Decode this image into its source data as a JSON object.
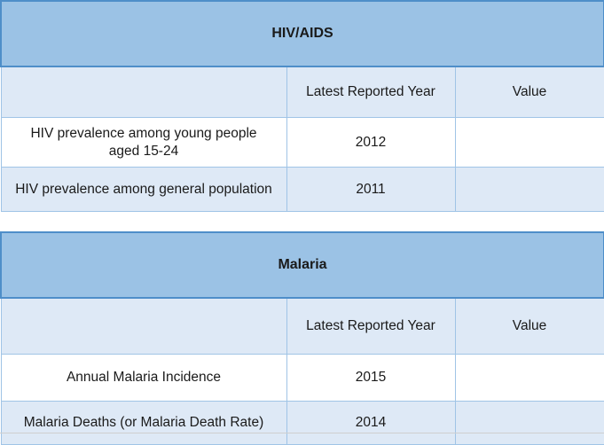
{
  "colors": {
    "banner_bg": "#9BC2E5",
    "banner_border": "#4E8EC9",
    "alt_row_bg": "#DEE9F6",
    "cell_border": "#A0C4E6",
    "text": "#1a1a1a"
  },
  "tables": [
    {
      "title": "HIV/AIDS",
      "columns": {
        "indicator": "",
        "year": "Latest Reported Year",
        "value": "Value"
      },
      "rows": [
        {
          "label": "HIV prevalence among young people\naged 15-24",
          "year": "2012",
          "value": ""
        },
        {
          "label": "HIV prevalence among general population",
          "year": "2011",
          "value": ""
        }
      ]
    },
    {
      "title": "Malaria",
      "columns": {
        "indicator": "",
        "year": "Latest Reported Year",
        "value": "Value"
      },
      "rows": [
        {
          "label": "Annual Malaria Incidence",
          "year": "2015",
          "value": ""
        },
        {
          "label": "Malaria Deaths (or Malaria Death Rate)",
          "year": "2014",
          "value": ""
        }
      ]
    }
  ]
}
